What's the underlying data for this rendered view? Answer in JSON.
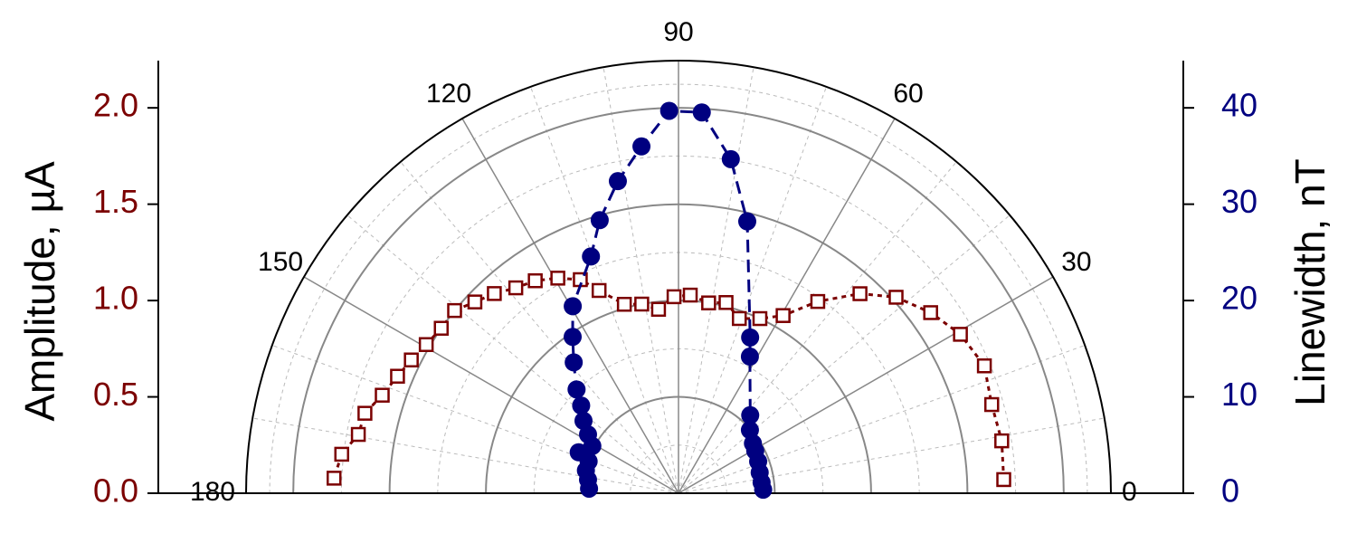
{
  "chart_data": {
    "type": "polar",
    "xlabel": null,
    "ylabel": "Amplitude, µA",
    "y2label": "Linewidth, nT",
    "xlim": [
      0,
      180
    ],
    "xticks": [
      0,
      30,
      60,
      90,
      120,
      150,
      180
    ],
    "ylim": [
      0,
      2.245
    ],
    "yticks": [
      0.0,
      0.5,
      1.0,
      1.5,
      2.0
    ],
    "y2lim": [
      0,
      44.9
    ],
    "y2ticks": [
      0,
      10,
      20,
      30,
      40
    ],
    "ycolor": "#7b0000",
    "y2color": "#000080",
    "grid": true,
    "series": [
      {
        "name": "Amplitude",
        "color": "#7b0000",
        "marker": "square",
        "x": [
          2.4,
          9.2,
          15.8,
          22.6,
          29.4,
          35.6,
          42,
          47.7,
          54,
          59.5,
          65,
          70.8,
          76,
          81,
          86.6,
          91.3,
          96.2,
          101,
          106,
          111.4,
          114.7,
          119.3,
          124,
          128.4,
          132.7,
          136.8,
          140.8,
          145.2,
          149.5,
          153.5,
          157.4,
          161.7,
          165.7,
          169.6,
          173.4,
          177.5
        ],
        "values": [
          1.69,
          1.7,
          1.69,
          1.72,
          1.68,
          1.61,
          1.52,
          1.4,
          1.23,
          1.07,
          1.0,
          0.96,
          1.02,
          1.0,
          1.03,
          1.02,
          0.96,
          1.0,
          1.02,
          1.13,
          1.22,
          1.28,
          1.33,
          1.36,
          1.41,
          1.45,
          1.5,
          1.5,
          1.52,
          1.55,
          1.58,
          1.62,
          1.68,
          1.69,
          1.76,
          1.79
        ]
      },
      {
        "name": "Linewidth",
        "color": "#000080",
        "marker": "circle",
        "axis": "y2",
        "x": [
          2.4,
          7.4,
          14.3,
          21.7,
          28.9,
          33.8,
          41.5,
          47.4,
          62.4,
          65.3,
          75.8,
          81.1,
          86.5,
          91.4,
          96.1,
          101,
          106.1,
          110.3,
          119.5,
          124.1,
          128.7,
          134.5,
          138,
          142.7,
          147,
          151.3,
          157.7,
          160.5,
          166.2,
          171.5,
          177.1
        ],
        "values": [
          8.8,
          8.7,
          8.7,
          8.9,
          9.1,
          9.3,
          9.9,
          11.0,
          16.0,
          17.8,
          29.1,
          35.1,
          39.6,
          39.7,
          36.2,
          33.0,
          29.5,
          26.2,
          22.3,
          19.6,
          17.4,
          15.1,
          13.6,
          12.4,
          11.2,
          10.2,
          11.2,
          9.9,
          9.9,
          9.5,
          9.3
        ]
      }
    ]
  }
}
